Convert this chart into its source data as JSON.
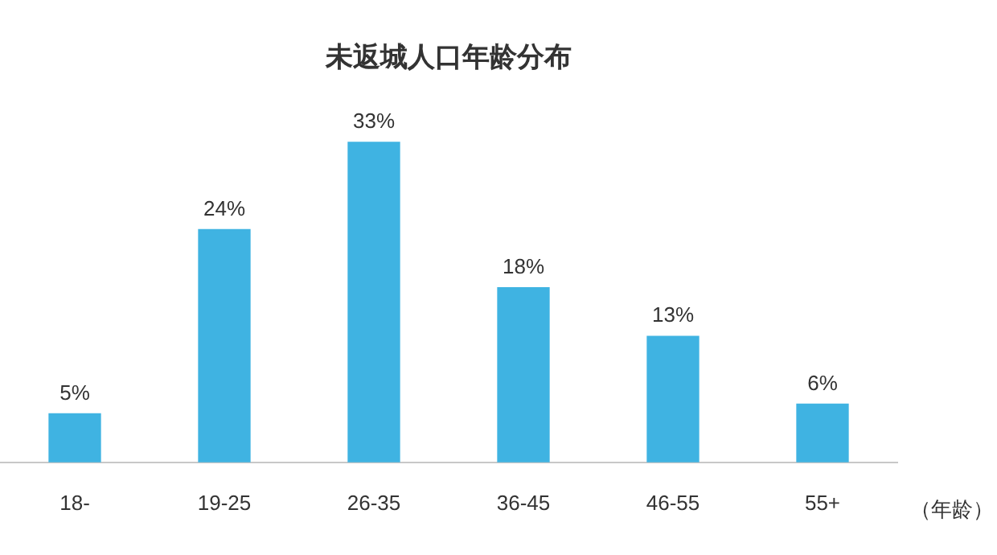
{
  "chart_data": {
    "type": "bar",
    "title": "未返城人口年龄分布",
    "xlabel": "（年龄）",
    "categories": [
      "18-",
      "19-25",
      "26-35",
      "36-45",
      "46-55",
      "55+"
    ],
    "values": [
      5,
      24,
      33,
      18,
      13,
      6
    ],
    "value_labels": [
      "5%",
      "24%",
      "33%",
      "18%",
      "13%",
      "6%"
    ],
    "color": "#3fb3e2",
    "grid": false,
    "legend": false
  }
}
